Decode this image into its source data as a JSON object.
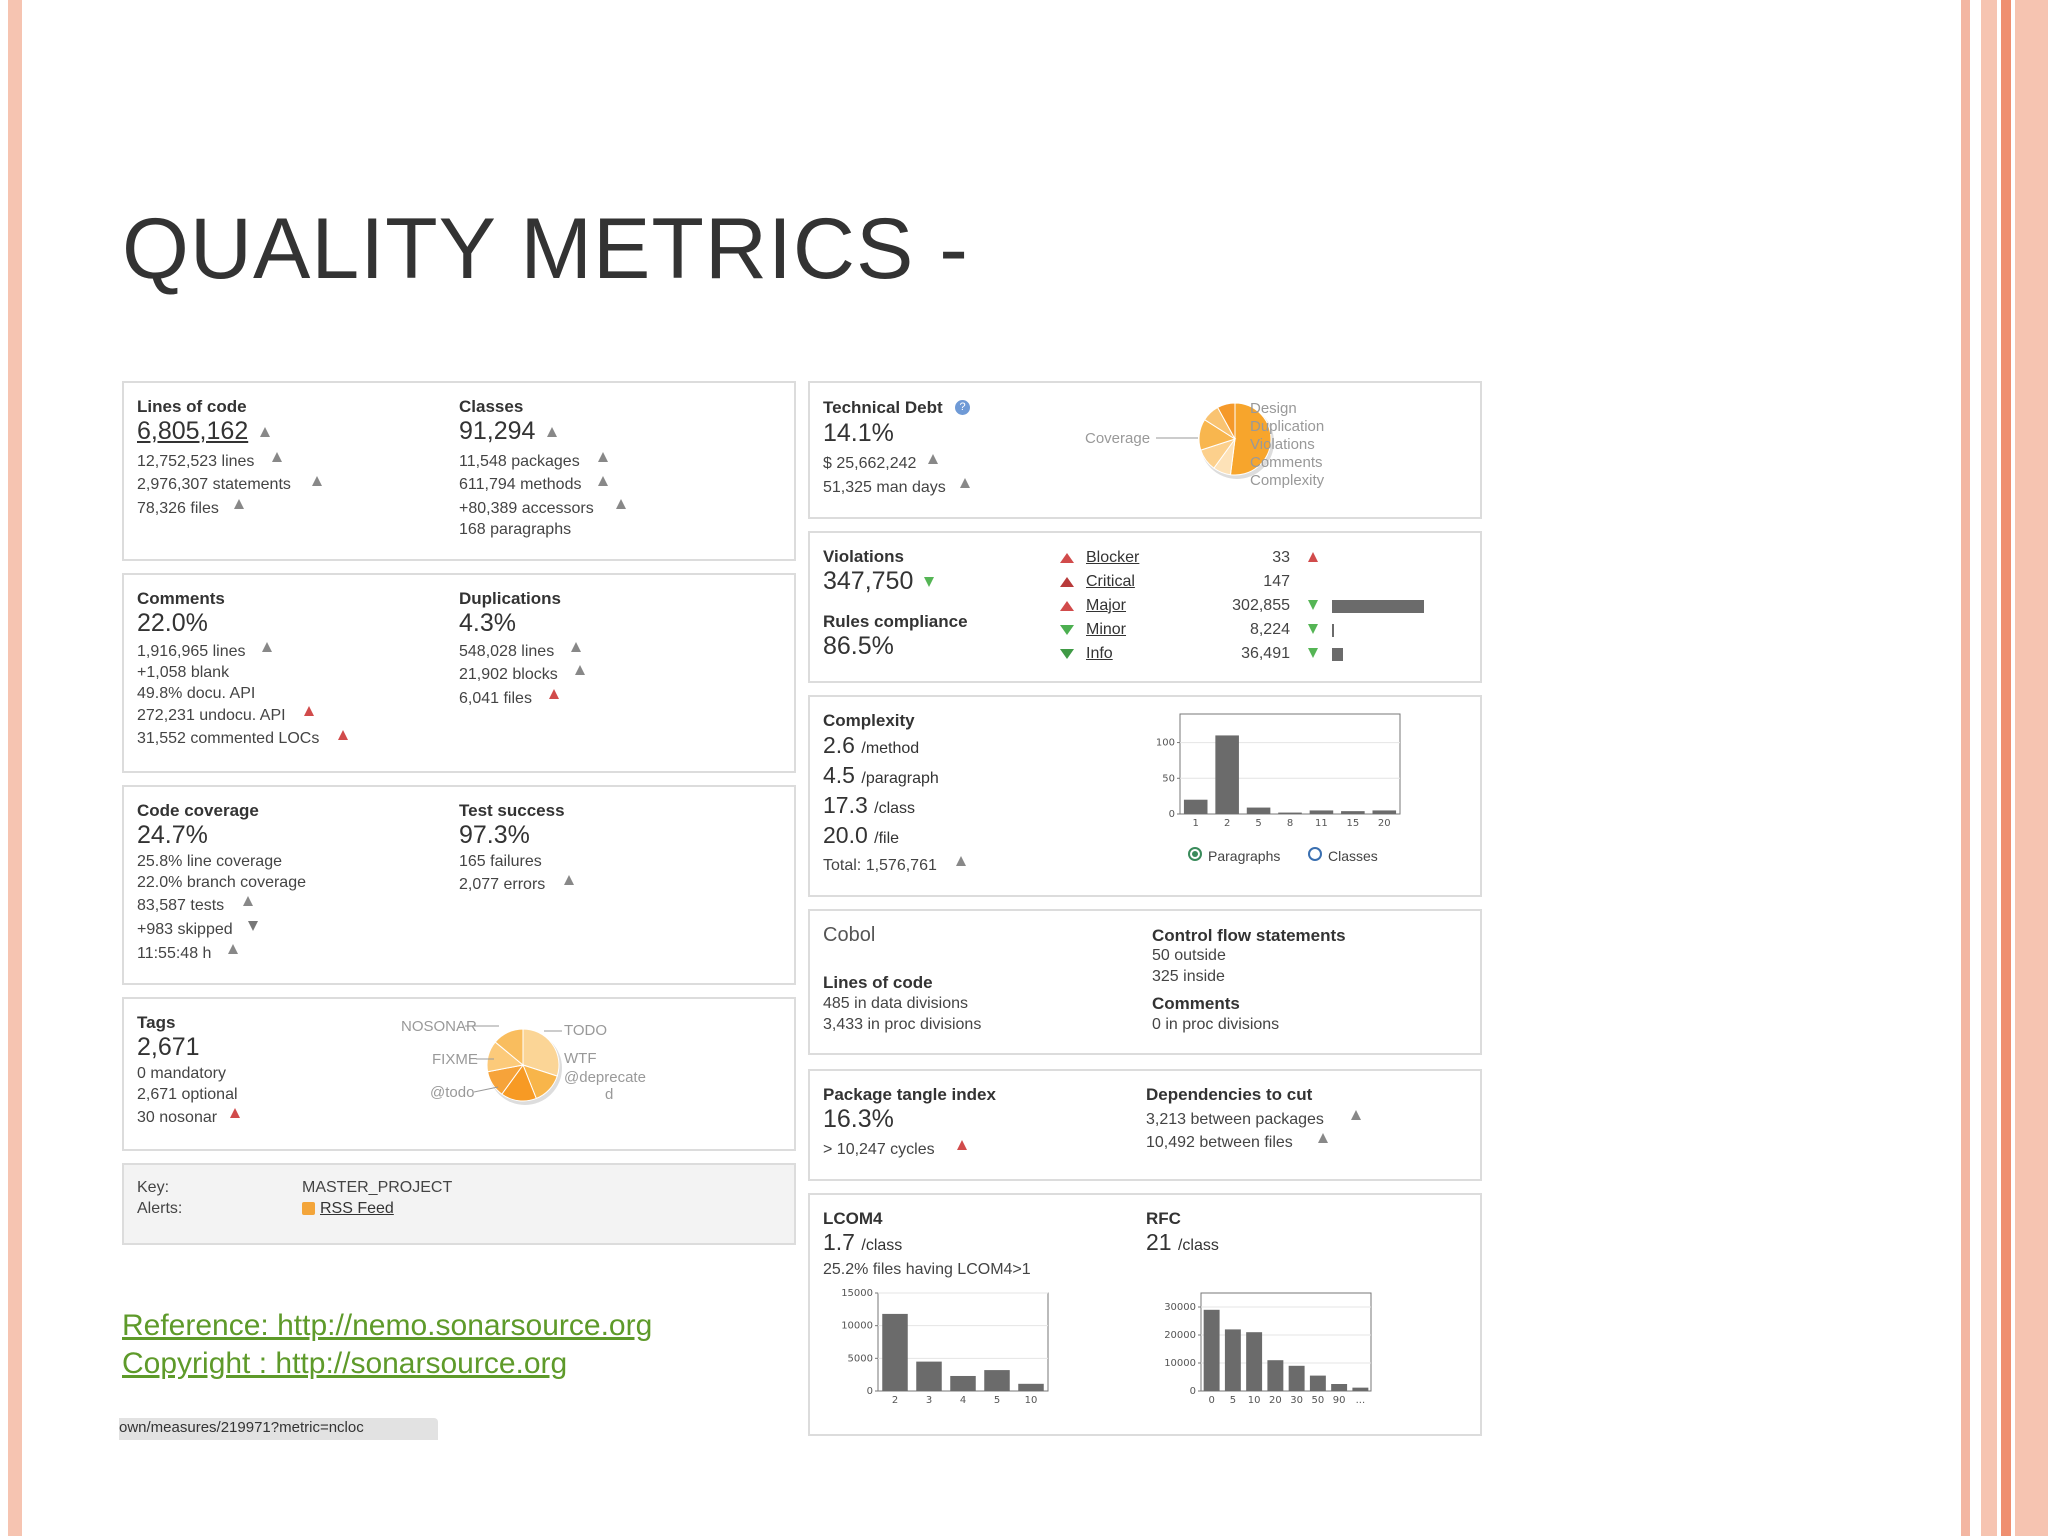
{
  "slide": {
    "title": "QUALITY METRICS -"
  },
  "loc": {
    "label": "Lines of code",
    "value": "6,805,162",
    "lines": "12,752,523 lines",
    "statements": "2,976,307 statements",
    "files": "78,326 files"
  },
  "classes": {
    "label": "Classes",
    "value": "91,294",
    "packages": "11,548 packages",
    "methods": "611,794 methods",
    "accessors": "+80,389 accessors",
    "paragraphs": "168 paragraphs"
  },
  "comments": {
    "label": "Comments",
    "value": "22.0%",
    "lines": "1,916,965 lines",
    "blank": "+1,058 blank",
    "docu": "49.8% docu. API",
    "undocu": "272,231 undocu. API",
    "commented": "31,552 commented LOCs"
  },
  "duplications": {
    "label": "Duplications",
    "value": "4.3%",
    "lines": "548,028 lines",
    "blocks": "21,902 blocks",
    "files": "6,041 files"
  },
  "coverage": {
    "label": "Code coverage",
    "value": "24.7%",
    "line": "25.8% line coverage",
    "branch": "22.0% branch coverage",
    "tests": "83,587 tests",
    "skipped": "+983 skipped",
    "time": "11:55:48 h"
  },
  "test_success": {
    "label": "Test success",
    "value": "97.3%",
    "failures": "165 failures",
    "errors": "2,077 errors"
  },
  "tags": {
    "label": "Tags",
    "value": "2,671",
    "mandatory": "0 mandatory",
    "optional": "2,671 optional",
    "nosonar": "30 nosonar",
    "pie_labels": {
      "nosonar": "NOSONAR",
      "fixme": "FIXME",
      "todo_at": "@todo",
      "todo": "TODO",
      "wtf": "WTF",
      "deprecated_1": "@deprecate",
      "deprecated_2": "d"
    }
  },
  "project": {
    "key_label": "Key:",
    "key_value": "MASTER_PROJECT",
    "alerts_label": "Alerts:",
    "rss": "RSS Feed"
  },
  "reference": {
    "ref": "Reference: http://nemo.sonarsource.org",
    "copyright": "Copyright : http://sonarsource.org"
  },
  "status_bar": "own/measures/219971?metric=ncloc",
  "debt": {
    "label": "Technical Debt",
    "value": "14.1%",
    "cost": "$ 25,662,242",
    "days": "51,325 man days",
    "pie_labels": {
      "coverage": "Coverage",
      "design": "Design",
      "duplication": "Duplication",
      "violations": "Violations",
      "comments": "Comments",
      "complexity": "Complexity"
    }
  },
  "violations": {
    "label": "Violations",
    "value": "347,750",
    "rules_label": "Rules compliance",
    "rules_value": "86.5%",
    "items": [
      {
        "name": "Blocker",
        "count": "33",
        "fraction": 0.0001
      },
      {
        "name": "Critical",
        "count": "147",
        "fraction": 0.0005
      },
      {
        "name": "Major",
        "count": "302,855",
        "fraction": 1.0
      },
      {
        "name": "Minor",
        "count": "8,224",
        "fraction": 0.027
      },
      {
        "name": "Info",
        "count": "36,491",
        "fraction": 0.12
      }
    ]
  },
  "complexity": {
    "label": "Complexity",
    "method": "2.6",
    "method_unit": "/method",
    "paragraph": "4.5",
    "paragraph_unit": "/paragraph",
    "class": "17.3",
    "class_unit": "/class",
    "file": "20.0",
    "file_unit": "/file",
    "total": "Total: 1,576,761",
    "radio_paragraphs": "Paragraphs",
    "radio_classes": "Classes"
  },
  "cobol": {
    "title": "Cobol",
    "loc_label": "Lines of code",
    "data_div": "485 in data divisions",
    "proc_div": "3,433 in proc divisions",
    "cf_label": "Control flow statements",
    "outside": "50 outside",
    "inside": "325 inside",
    "comments_label": "Comments",
    "comments_proc": "0 in proc divisions"
  },
  "tangle": {
    "label": "Package tangle index",
    "value": "16.3%",
    "cycles": "> 10,247 cycles",
    "deps_label": "Dependencies to cut",
    "between_packages": "3,213 between packages",
    "between_files": "10,492 between files"
  },
  "lcom": {
    "label": "LCOM4",
    "value": "1.7",
    "unit": "/class",
    "files": "25.2% files having LCOM4>1"
  },
  "rfc": {
    "label": "RFC",
    "value": "21",
    "unit": "/class"
  },
  "chart_data": [
    {
      "type": "bar",
      "name": "complexity-distribution",
      "categories": [
        "1",
        "2",
        "5",
        "8",
        "11",
        "15",
        "20"
      ],
      "values": [
        20,
        110,
        9,
        2,
        5,
        4,
        5
      ],
      "yticks": [
        "0",
        "50",
        "100"
      ],
      "ylim": [
        0,
        140
      ]
    },
    {
      "type": "bar",
      "name": "lcom4-distribution",
      "categories": [
        "2",
        "3",
        "4",
        "5",
        "10"
      ],
      "values": [
        11800,
        4500,
        2300,
        3200,
        1100
      ],
      "yticks": [
        "0",
        "5000",
        "10000",
        "15000"
      ],
      "ylim": [
        0,
        15000
      ]
    },
    {
      "type": "bar",
      "name": "rfc-distribution",
      "categories": [
        "0",
        "5",
        "10",
        "20",
        "30",
        "50",
        "90",
        "..."
      ],
      "values": [
        29000,
        22000,
        21000,
        11000,
        9000,
        5500,
        2500,
        1200
      ],
      "yticks": [
        "0",
        "10000",
        "20000",
        "30000"
      ],
      "ylim": [
        0,
        35000
      ]
    },
    {
      "type": "pie",
      "name": "technical-debt",
      "categories": [
        "Coverage",
        "Design",
        "Duplication",
        "Violations",
        "Comments",
        "Complexity"
      ],
      "values": [
        52,
        8,
        10,
        14,
        8,
        8
      ]
    },
    {
      "type": "pie",
      "name": "tags",
      "categories": [
        "TODO",
        "WTF",
        "@deprecated",
        "@todo",
        "FIXME",
        "NOSONAR"
      ],
      "values": [
        30,
        14,
        16,
        12,
        14,
        14
      ]
    }
  ]
}
